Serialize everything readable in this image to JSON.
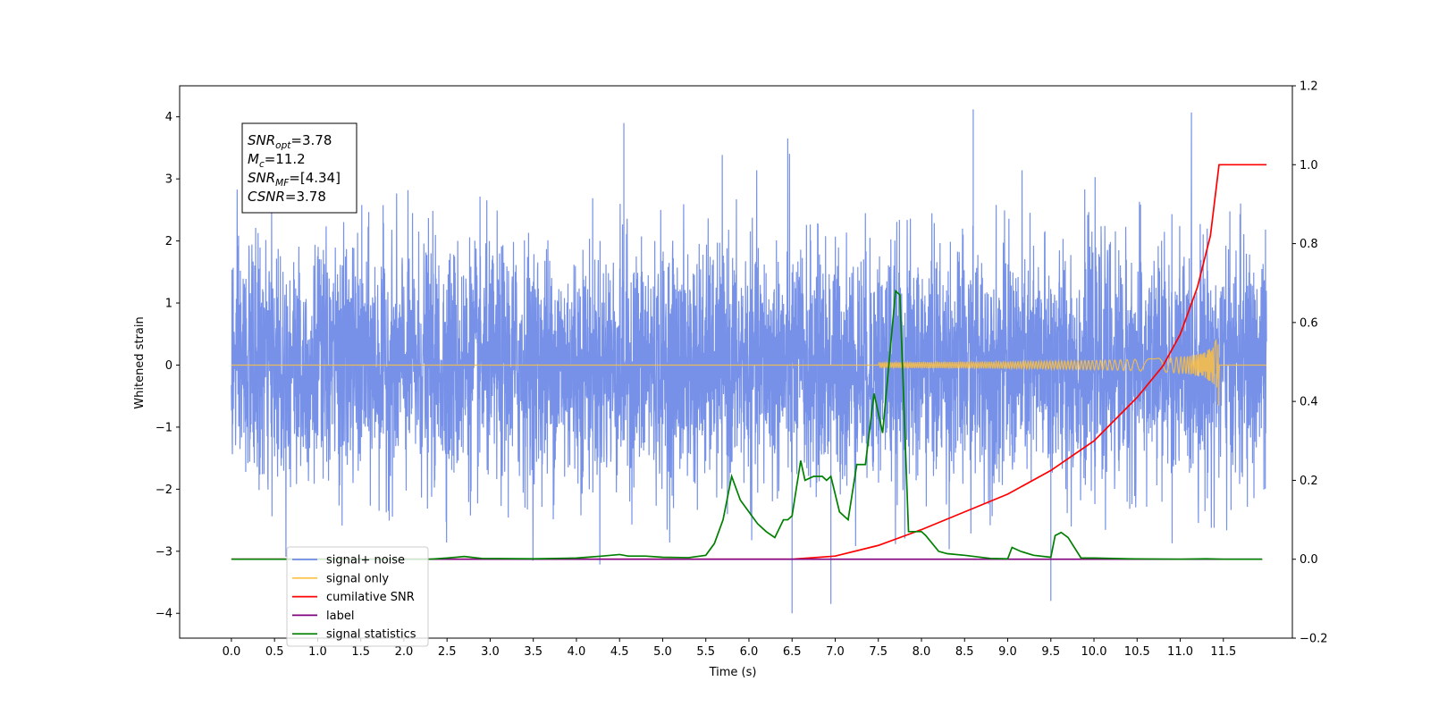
{
  "chart_data": {
    "type": "line",
    "xlabel": "Time (s)",
    "ylabel": "Whitened strain",
    "x_ticks": [
      0.0,
      0.5,
      1.0,
      1.5,
      2.0,
      2.5,
      3.0,
      3.5,
      4.0,
      4.5,
      5.0,
      5.5,
      6.0,
      6.5,
      7.0,
      7.5,
      8.0,
      8.5,
      9.0,
      9.5,
      10.0,
      10.5,
      11.0,
      11.5
    ],
    "x_tick_labels": [
      "0.0",
      "0.5",
      "1.0",
      "1.5",
      "2.0",
      "2.5",
      "3.0",
      "3.5",
      "4.0",
      "4.5",
      "5.0",
      "5.5",
      "6.0",
      "6.5",
      "7.0",
      "7.5",
      "8.0",
      "8.5",
      "9.0",
      "9.5",
      "10.0",
      "10.5",
      "11.0",
      "11.5"
    ],
    "xlim": [
      -0.6,
      12.3
    ],
    "ylim_left": [
      -4.4,
      4.5
    ],
    "y_ticks_left": [
      -4,
      -3,
      -2,
      -1,
      0,
      1,
      2,
      3,
      4
    ],
    "y_tick_labels_left": [
      "−4",
      "−3",
      "−2",
      "−1",
      "0",
      "1",
      "2",
      "3",
      "4"
    ],
    "ylim_right": [
      -0.2,
      1.2
    ],
    "y_ticks_right": [
      -0.2,
      0.0,
      0.2,
      0.4,
      0.6,
      0.8,
      1.0,
      1.2
    ],
    "y_tick_labels_right": [
      "−0.2",
      "0.0",
      "0.2",
      "0.4",
      "0.6",
      "0.8",
      "1.0",
      "1.2"
    ],
    "annotation": {
      "lines": [
        {
          "base": "SNR",
          "sub": "opt",
          "value": "=3.78"
        },
        {
          "base": "M",
          "sub": "c",
          "value": "=11.2"
        },
        {
          "base": "SNR",
          "sub": "MF",
          "value": "=[4.34]"
        },
        {
          "base": "CSNR",
          "sub": "",
          "value": "=3.78"
        }
      ]
    },
    "legend": {
      "placement": "lower-left",
      "entries": [
        {
          "label": "signal+ noise",
          "color": "#6f8be6"
        },
        {
          "label": "signal only",
          "color": "#ffbf40"
        },
        {
          "label": "cumilative SNR",
          "color": "#ff0000"
        },
        {
          "label": "label",
          "color": "#800080"
        },
        {
          "label": "signal statistics",
          "color": "#008000"
        }
      ]
    },
    "series": [
      {
        "name": "signal+ noise",
        "axis": "left",
        "color": "#6f8be6",
        "x_range": [
          0.0,
          12.0
        ],
        "typical_envelope": [
          -2.3,
          2.3
        ],
        "extreme_range": [
          -4.0,
          4.1
        ],
        "notable_peaks": [
          [
            4.55,
            3.9
          ],
          [
            6.45,
            3.65
          ],
          [
            8.6,
            4.12
          ],
          [
            9.5,
            -3.8
          ],
          [
            6.5,
            -4.0
          ],
          [
            6.95,
            -3.85
          ]
        ]
      },
      {
        "name": "signal only",
        "axis": "left",
        "color": "#ffbf40",
        "x_range": [
          0.0,
          12.0
        ],
        "chirp_start": 7.5,
        "merger_time": 11.45,
        "peak_amplitude": 0.75
      },
      {
        "name": "cumilative SNR",
        "axis": "right",
        "x": [
          0.0,
          6.0,
          6.5,
          7.0,
          7.5,
          8.0,
          8.5,
          9.0,
          9.5,
          10.0,
          10.5,
          10.8,
          11.0,
          11.2,
          11.35,
          11.45,
          12.0
        ],
        "values": [
          0.0,
          0.0,
          0.0,
          0.008,
          0.035,
          0.075,
          0.12,
          0.165,
          0.225,
          0.3,
          0.41,
          0.49,
          0.57,
          0.69,
          0.82,
          1.0,
          1.0
        ]
      },
      {
        "name": "label",
        "axis": "right",
        "x": [
          0.0,
          11.95
        ],
        "values": [
          0.0,
          0.0
        ]
      },
      {
        "name": "signal statistics",
        "axis": "right",
        "x": [
          0.0,
          2.3,
          2.5,
          2.7,
          2.9,
          3.5,
          4.0,
          4.3,
          4.5,
          4.6,
          4.8,
          5.0,
          5.3,
          5.5,
          5.6,
          5.7,
          5.8,
          5.9,
          6.0,
          6.1,
          6.2,
          6.3,
          6.4,
          6.45,
          6.5,
          6.6,
          6.65,
          6.75,
          6.85,
          6.9,
          6.95,
          7.05,
          7.15,
          7.25,
          7.35,
          7.45,
          7.55,
          7.6,
          7.7,
          7.75,
          7.85,
          8.0,
          8.05,
          8.2,
          8.3,
          8.5,
          8.8,
          9.0,
          9.05,
          9.15,
          9.3,
          9.5,
          9.55,
          9.62,
          9.7,
          9.85,
          10.0,
          10.4,
          11.0,
          11.3,
          11.5,
          11.95
        ],
        "values": [
          0.0,
          0.0,
          0.003,
          0.007,
          0.002,
          0.001,
          0.003,
          0.008,
          0.012,
          0.008,
          0.008,
          0.005,
          0.004,
          0.01,
          0.04,
          0.1,
          0.21,
          0.15,
          0.12,
          0.09,
          0.07,
          0.055,
          0.1,
          0.1,
          0.11,
          0.25,
          0.2,
          0.21,
          0.21,
          0.2,
          0.21,
          0.12,
          0.1,
          0.24,
          0.24,
          0.42,
          0.32,
          0.44,
          0.68,
          0.67,
          0.07,
          0.07,
          0.06,
          0.02,
          0.014,
          0.01,
          0.002,
          0.001,
          0.03,
          0.02,
          0.01,
          0.005,
          0.06,
          0.068,
          0.055,
          0.003,
          0.003,
          0.001,
          0.0,
          0.001,
          0.0,
          0.0
        ]
      }
    ]
  }
}
